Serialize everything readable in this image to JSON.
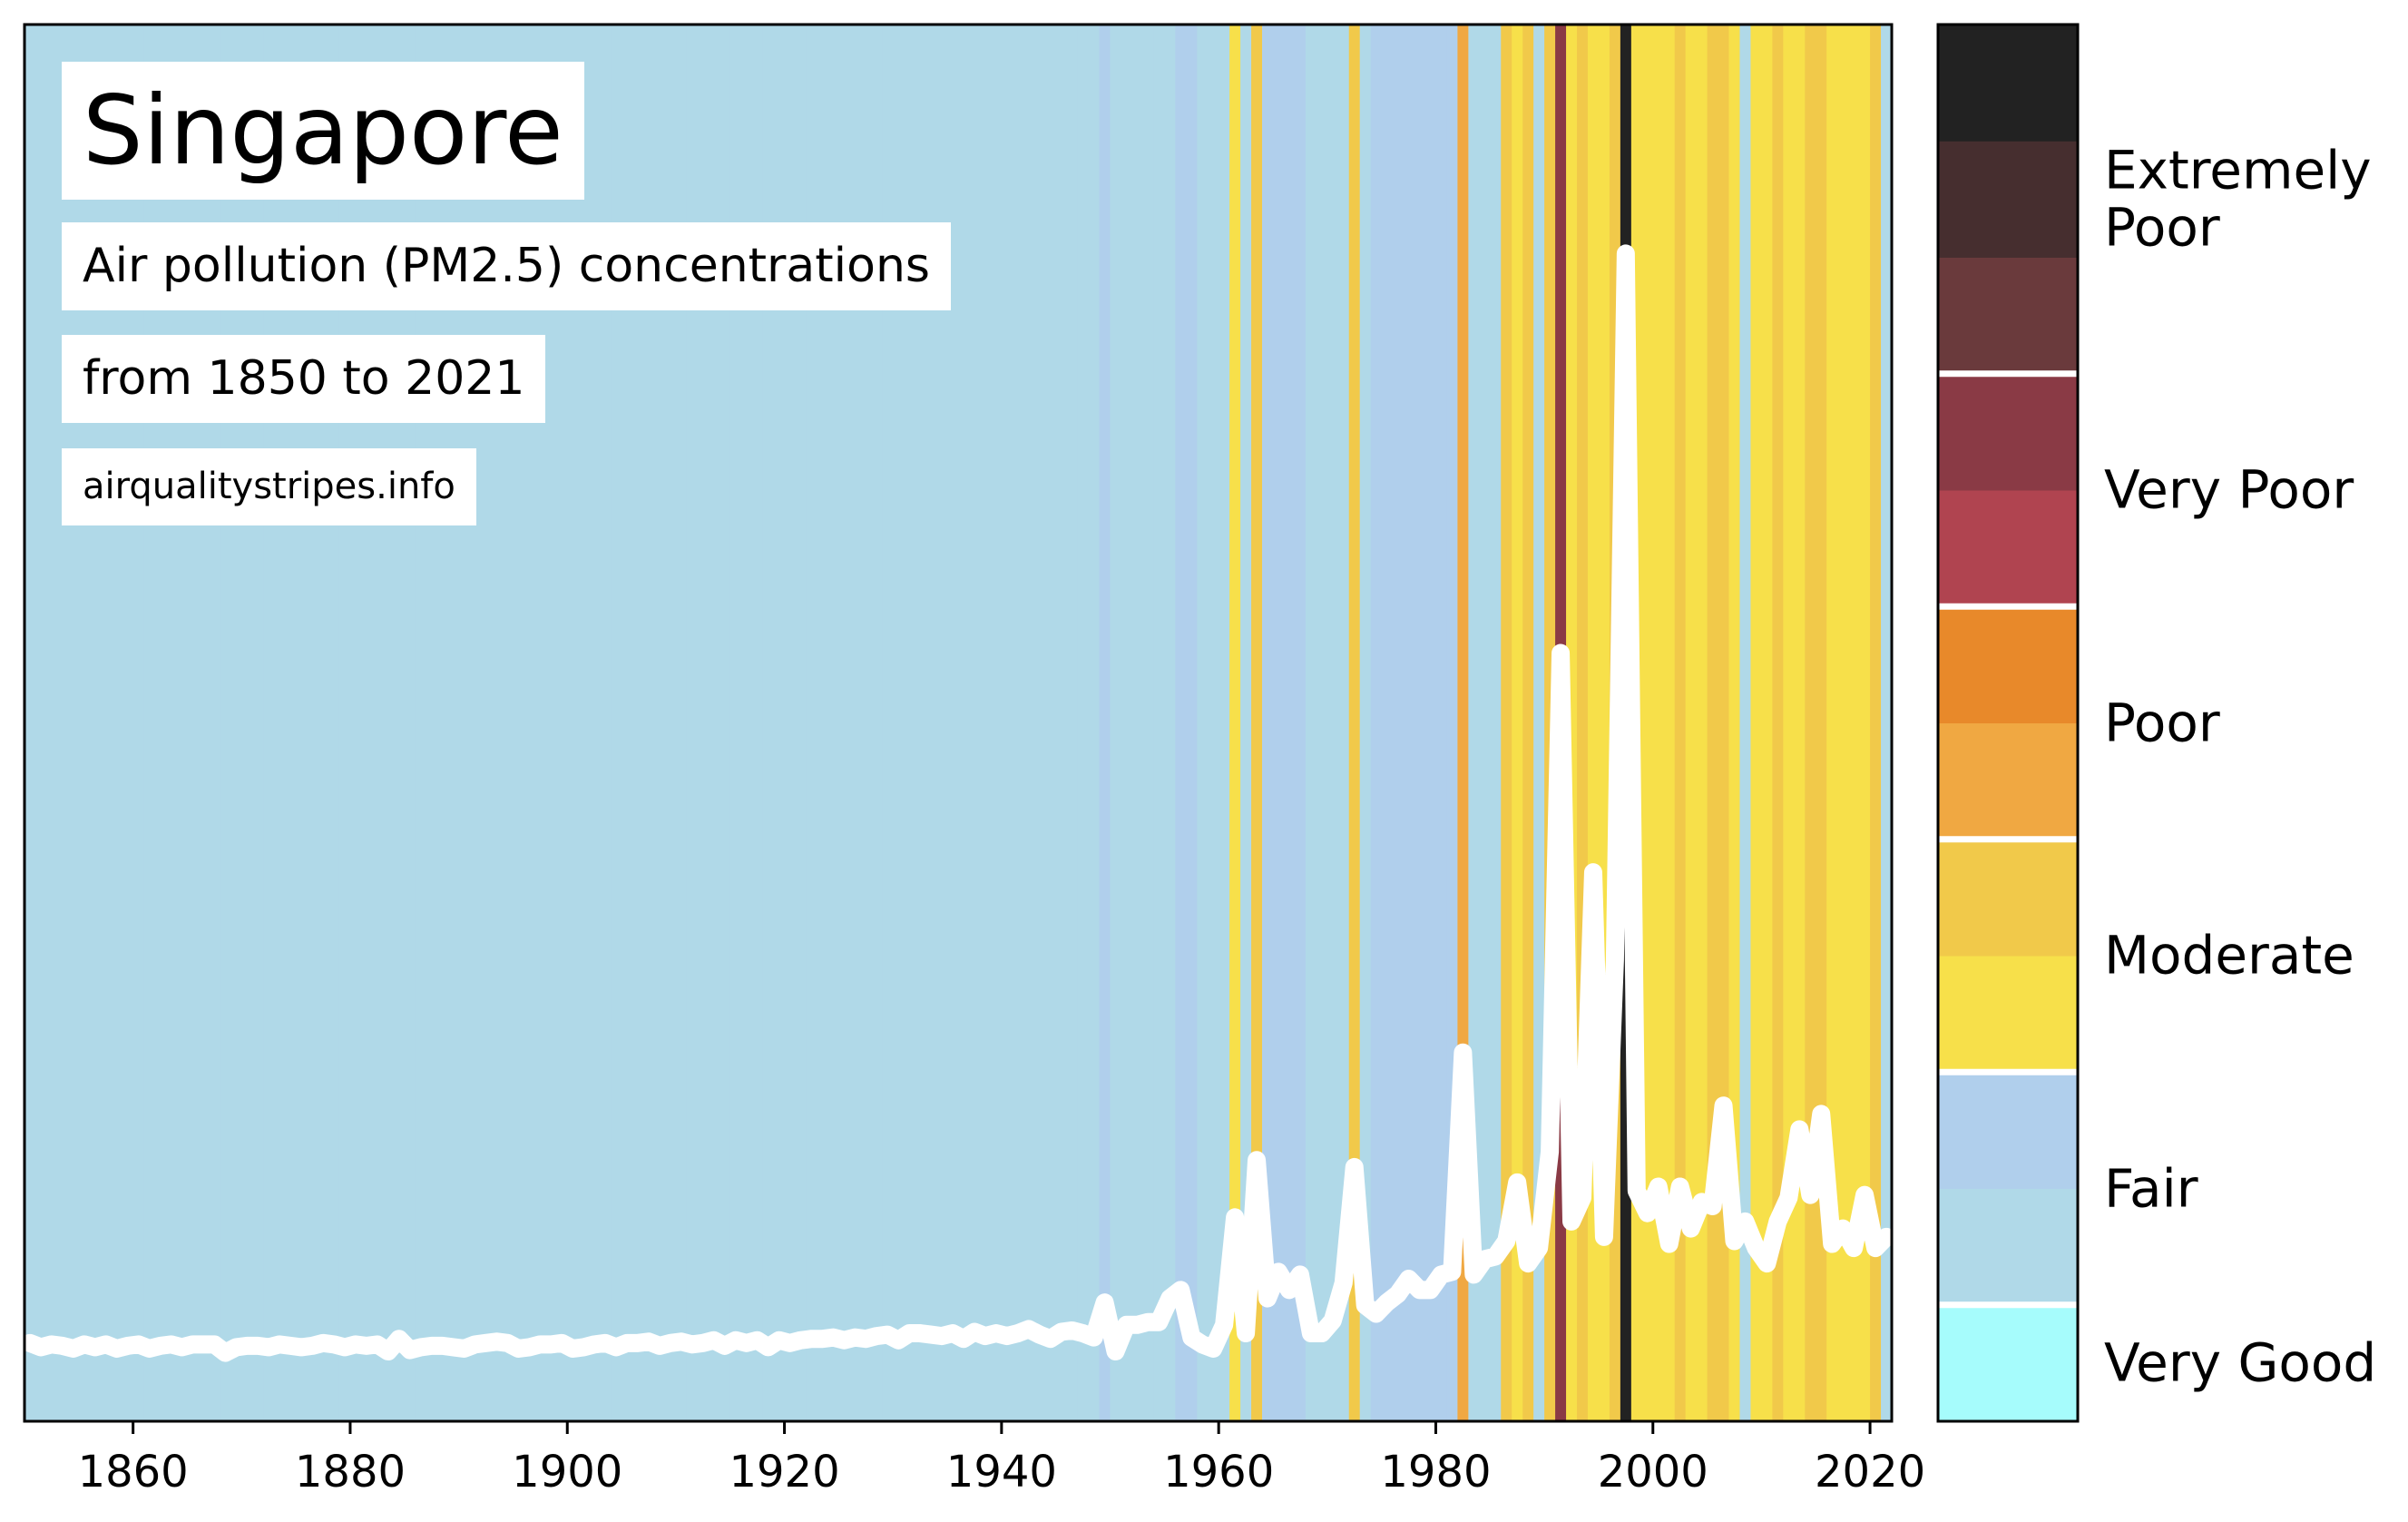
{
  "chart_data": {
    "type": "stripes-line",
    "title": "Singapore",
    "subtitle": [
      "Air pollution (PM2.5) concentrations",
      "from 1850 to 2021"
    ],
    "source": "airqualitystripes.info",
    "line_color": "#ffffff",
    "xlim": [
      1850,
      2022
    ],
    "xticks": [
      1860,
      1880,
      1900,
      1920,
      1940,
      1960,
      1980,
      2000,
      2020
    ],
    "ylim": [
      0,
      100
    ],
    "x": [
      1850,
      1851,
      1852,
      1853,
      1854,
      1855,
      1856,
      1857,
      1858,
      1859,
      1860,
      1861,
      1862,
      1863,
      1864,
      1865,
      1866,
      1867,
      1868,
      1869,
      1870,
      1871,
      1872,
      1873,
      1874,
      1875,
      1876,
      1877,
      1878,
      1879,
      1880,
      1881,
      1882,
      1883,
      1884,
      1885,
      1886,
      1887,
      1888,
      1889,
      1890,
      1891,
      1892,
      1893,
      1894,
      1895,
      1896,
      1897,
      1898,
      1899,
      1900,
      1901,
      1902,
      1903,
      1904,
      1905,
      1906,
      1907,
      1908,
      1909,
      1910,
      1911,
      1912,
      1913,
      1914,
      1915,
      1916,
      1917,
      1918,
      1919,
      1920,
      1921,
      1922,
      1923,
      1924,
      1925,
      1926,
      1927,
      1928,
      1929,
      1930,
      1931,
      1932,
      1933,
      1934,
      1935,
      1936,
      1937,
      1938,
      1939,
      1940,
      1941,
      1942,
      1943,
      1944,
      1945,
      1946,
      1947,
      1948,
      1949,
      1950,
      1951,
      1952,
      1953,
      1954,
      1955,
      1956,
      1957,
      1958,
      1959,
      1960,
      1961,
      1962,
      1963,
      1964,
      1965,
      1966,
      1967,
      1968,
      1969,
      1970,
      1971,
      1972,
      1973,
      1974,
      1975,
      1976,
      1977,
      1978,
      1979,
      1980,
      1981,
      1982,
      1983,
      1984,
      1985,
      1986,
      1987,
      1988,
      1989,
      1990,
      1991,
      1992,
      1993,
      1994,
      1995,
      1996,
      1997,
      1998,
      1999,
      2000,
      2001,
      2002,
      2003,
      2004,
      2005,
      2006,
      2007,
      2008,
      2009,
      2010,
      2011,
      2012,
      2013,
      2014,
      2015,
      2016,
      2017,
      2018,
      2019,
      2020,
      2021
    ],
    "values": [
      5.6,
      5.3,
      5.5,
      5.4,
      5.2,
      5.5,
      5.3,
      5.5,
      5.2,
      5.4,
      5.5,
      5.2,
      5.4,
      5.5,
      5.3,
      5.5,
      5.5,
      5.5,
      4.9,
      5.3,
      5.4,
      5.4,
      5.3,
      5.5,
      5.4,
      5.3,
      5.4,
      5.6,
      5.5,
      5.3,
      5.5,
      5.4,
      5.5,
      5.0,
      5.9,
      5.1,
      5.3,
      5.4,
      5.4,
      5.3,
      5.2,
      5.5,
      5.6,
      5.7,
      5.6,
      5.2,
      5.3,
      5.5,
      5.5,
      5.6,
      5.2,
      5.3,
      5.5,
      5.6,
      5.3,
      5.6,
      5.6,
      5.7,
      5.4,
      5.6,
      5.7,
      5.5,
      5.6,
      5.8,
      5.4,
      5.8,
      5.6,
      5.8,
      5.3,
      5.8,
      5.6,
      5.8,
      5.9,
      5.9,
      6.0,
      5.8,
      6.0,
      5.9,
      6.1,
      6.2,
      5.8,
      6.3,
      6.3,
      6.2,
      6.1,
      6.3,
      5.9,
      6.4,
      6.1,
      6.3,
      6.1,
      6.3,
      6.6,
      6.2,
      5.9,
      6.4,
      6.5,
      6.3,
      6.0,
      8.5,
      5,
      6.9,
      6.9,
      7.1,
      7.1,
      8.8,
      9.4,
      6,
      5.5,
      5.2,
      6.9,
      14.6,
      6.3,
      18.7,
      8.8,
      10.7,
      9.4,
      10.5,
      6.3,
      6.3,
      7.2,
      9.9,
      18.2,
      8.3,
      7.7,
      8.5,
      9.1,
      10.2,
      9.4,
      9.4,
      10.5,
      10.7,
      26.4,
      10.5,
      11.6,
      11.8,
      12.9,
      17.1,
      11.3,
      12.4,
      19.3,
      55,
      14.3,
      16,
      39.3,
      13.2,
      33,
      83.6,
      16.5,
      14.9,
      16.8,
      12.7,
      16.8,
      13.8,
      15.7,
      15.4,
      22.6,
      12.9,
      14.3,
      12.4,
      11.3,
      14.3,
      16,
      20.9,
      16.2,
      22,
      12.7,
      13.8,
      12.4,
      16.2,
      12.4,
      13.2
    ],
    "stripe_colors": [
      "#b0d9e8",
      "#b0d9e8",
      "#b0d9e8",
      "#b0d9e8",
      "#b0d9e8",
      "#b0d9e8",
      "#b0d9e8",
      "#b0d9e8",
      "#b0d9e8",
      "#b0d9e8",
      "#b0d9e8",
      "#b0d9e8",
      "#b0d9e8",
      "#b0d9e8",
      "#b0d9e8",
      "#b0d9e8",
      "#b0d9e8",
      "#b0d9e8",
      "#b0d9e8",
      "#b0d9e8",
      "#b0d9e8",
      "#b0d9e8",
      "#b0d9e8",
      "#b0d9e8",
      "#b0d9e8",
      "#b0d9e8",
      "#b0d9e8",
      "#b0d9e8",
      "#b0d9e8",
      "#b0d9e8",
      "#b0d9e8",
      "#b0d9e8",
      "#b0d9e8",
      "#b0d9e8",
      "#b0d9e8",
      "#b0d9e8",
      "#b0d9e8",
      "#b0d9e8",
      "#b0d9e8",
      "#b0d9e8",
      "#b0d9e8",
      "#b0d9e8",
      "#b0d9e8",
      "#b0d9e8",
      "#b0d9e8",
      "#b0d9e8",
      "#b0d9e8",
      "#b0d9e8",
      "#b0d9e8",
      "#b0d9e8",
      "#b0d9e8",
      "#b0d9e8",
      "#b0d9e8",
      "#b0d9e8",
      "#b0d9e8",
      "#b0d9e8",
      "#b0d9e8",
      "#b0d9e8",
      "#b0d9e8",
      "#b0d9e8",
      "#b0d9e8",
      "#b0d9e8",
      "#b0d9e8",
      "#b0d9e8",
      "#b0d9e8",
      "#b0d9e8",
      "#b0d9e8",
      "#b0d9e8",
      "#b0d9e8",
      "#b0d9e8",
      "#b0d9e8",
      "#b0d9e8",
      "#b0d9e8",
      "#b0d9e8",
      "#b0d9e8",
      "#b0d9e8",
      "#b0d9e8",
      "#b0d9e8",
      "#b0d9e8",
      "#b0d9e8",
      "#b0d9e8",
      "#b0d9e8",
      "#b0d9e8",
      "#b0d9e8",
      "#b0d9e8",
      "#b0d9e8",
      "#b0d9e8",
      "#b0d9e8",
      "#b0d9e8",
      "#b0d9e8",
      "#b0d9e8",
      "#b0d9e8",
      "#b0d9e8",
      "#b0d9e8",
      "#b0d9e8",
      "#b0d9e8",
      "#b0d9e8",
      "#b0d9e8",
      "#b0d9e8",
      "#b0cfec",
      "#b0d9e8",
      "#b0d9e8",
      "#b0d9e8",
      "#b0d9e8",
      "#b0d9e8",
      "#b0d9e8",
      "#b0cfec",
      "#b0cfec",
      "#b0d9e8",
      "#b0d9e8",
      "#b0d9e8",
      "#f7e04a",
      "#b0d9e8",
      "#f1c94a",
      "#b0cfec",
      "#b0cfec",
      "#b0cfec",
      "#b0cfec",
      "#b0d9e8",
      "#b0d9e8",
      "#b0d9e8",
      "#b0d9e8",
      "#f1c94a",
      "#b0d9e8",
      "#b0cfec",
      "#b0cfec",
      "#b0cfec",
      "#b0cfec",
      "#b0cfec",
      "#b0cfec",
      "#b0cfec",
      "#b0cfec",
      "#f0a842",
      "#b0d9e8",
      "#b0d9e8",
      "#b0d9e8",
      "#f1c94a",
      "#f7e04a",
      "#f1c94a",
      "#b0d9e8",
      "#f1c94a",
      "#8a3a45",
      "#f7e04a",
      "#f1c94a",
      "#f7e04a",
      "#f7e04a",
      "#f1c94a",
      "#222222",
      "#f7e04a",
      "#f7e04a",
      "#f7e04a",
      "#f7e04a",
      "#f1c94a",
      "#f7e04a",
      "#f7e04a",
      "#f1c94a",
      "#f1c94a",
      "#f7e04a",
      "#b0d9e8",
      "#f7e04a",
      "#f7e04a",
      "#f1c94a",
      "#f7e04a",
      "#f7e04a",
      "#f1c94a",
      "#f1c94a",
      "#f7e04a",
      "#f7e04a",
      "#f7e04a",
      "#f7e04a",
      "#f1c94a",
      "#b0d9e8"
    ],
    "colorbar": [
      {
        "label": "Very Good",
        "colors": [
          "#a6fcfc"
        ]
      },
      {
        "label": "Fair",
        "colors": [
          "#b0d9e8",
          "#b0cfec"
        ]
      },
      {
        "label": "Moderate",
        "colors": [
          "#f7e04a",
          "#f1c94a"
        ]
      },
      {
        "label": "Poor",
        "colors": [
          "#f0a842",
          "#e8892a"
        ]
      },
      {
        "label": "Very Poor",
        "colors": [
          "#b04450",
          "#8a3a45"
        ]
      },
      {
        "label": "Extremely\nPoor",
        "colors": [
          "#6a3a3c",
          "#462e2f",
          "#222222"
        ]
      }
    ]
  }
}
